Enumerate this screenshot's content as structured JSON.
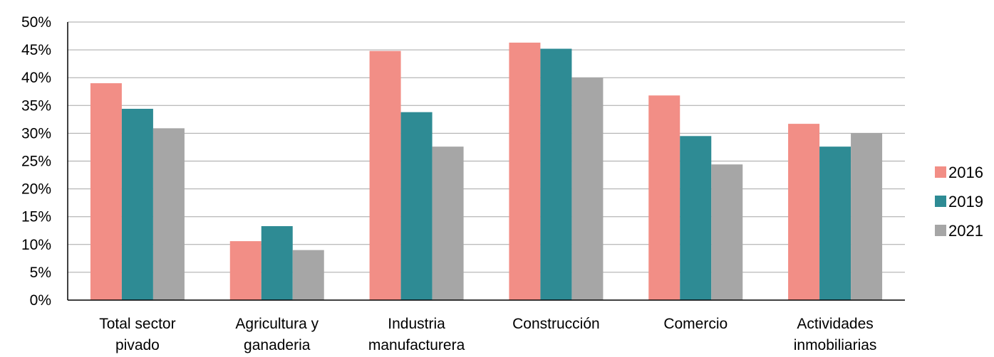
{
  "chart_data": {
    "type": "bar",
    "categories": [
      [
        "Total sector",
        "pivado"
      ],
      [
        "Agricultura y",
        "ganaderia"
      ],
      [
        "Industria",
        "manufacturera"
      ],
      [
        "Construcción"
      ],
      [
        "Comercio"
      ],
      [
        "Actividades",
        "inmobiliarias"
      ]
    ],
    "series": [
      {
        "name": "2016",
        "color": "#f28e86",
        "values": [
          39,
          10.6,
          44.8,
          46.3,
          36.8,
          31.7
        ]
      },
      {
        "name": "2019",
        "color": "#2e8b94",
        "values": [
          34.4,
          13.3,
          33.8,
          45.2,
          29.5,
          27.6
        ]
      },
      {
        "name": "2021",
        "color": "#a6a6a6",
        "values": [
          30.9,
          9,
          27.6,
          40,
          24.4,
          30
        ]
      }
    ],
    "yticks": [
      "0%",
      "5%",
      "10%",
      "15%",
      "20%",
      "25%",
      "30%",
      "35%",
      "40%",
      "45%",
      "50%"
    ],
    "ylim": [
      0,
      50
    ],
    "grid": true,
    "legend_position": "right"
  }
}
